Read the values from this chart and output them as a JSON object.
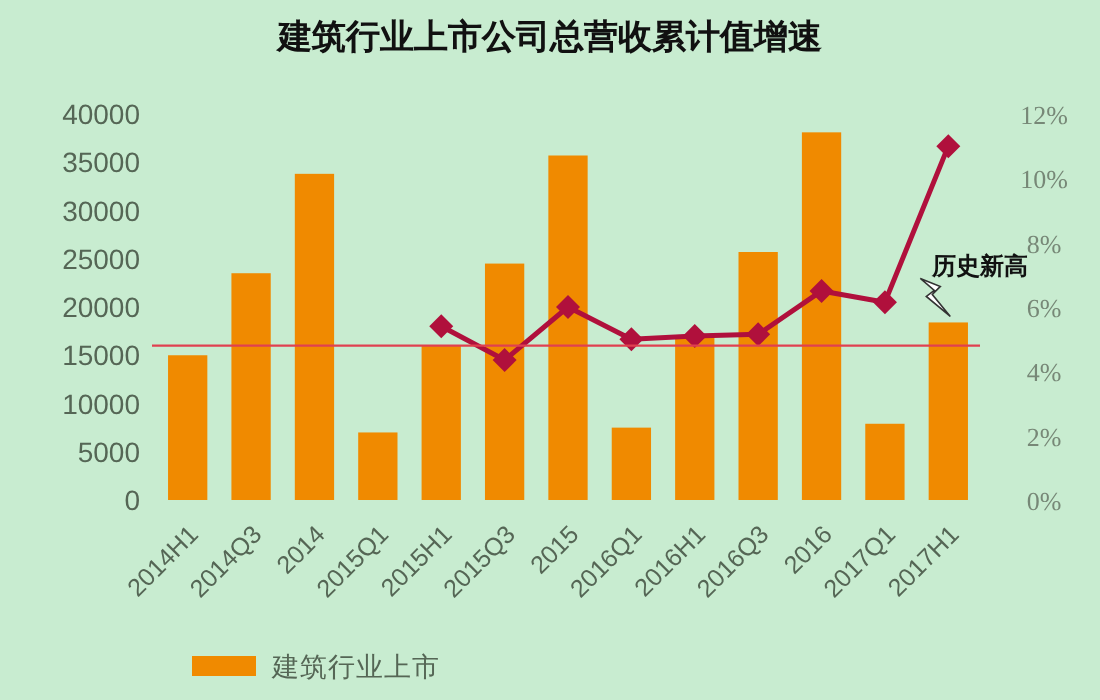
{
  "chart_data": {
    "type": "bar",
    "title": "建筑行业上市公司总营收累计值增速",
    "categories": [
      "2014H1",
      "2014Q3",
      "2014",
      "2015Q1",
      "2015H1",
      "2015Q3",
      "2015",
      "2016Q1",
      "2016H1",
      "2016Q3",
      "2016",
      "2017Q1",
      "2017H1"
    ],
    "series": [
      {
        "name": "建筑行业上市",
        "color": "#f08a00",
        "values": [
          15000,
          23500,
          33800,
          7000,
          16000,
          24500,
          35700,
          7500,
          17000,
          25700,
          38100,
          7900,
          18400
        ]
      },
      {
        "type": "line",
        "axis": "y2",
        "color": "#b0103c",
        "marker": "diamond",
        "values": [
          null,
          null,
          null,
          null,
          5.4,
          4.35,
          6.0,
          5.0,
          5.1,
          5.15,
          6.5,
          6.15,
          11.0
        ]
      }
    ],
    "ylim": [
      0,
      40000
    ],
    "yticks": [
      0,
      5000,
      10000,
      15000,
      20000,
      25000,
      30000,
      35000,
      40000
    ],
    "y2lim": [
      0,
      12
    ],
    "y2ticks": [
      {
        "value": 0,
        "label": "0%"
      },
      {
        "value": 2,
        "label": "2%"
      },
      {
        "value": 4,
        "label": "4%"
      },
      {
        "value": 6,
        "label": "6%"
      },
      {
        "value": 8,
        "label": "8%"
      },
      {
        "value": 10,
        "label": "10%"
      },
      {
        "value": 12,
        "label": "12%"
      }
    ],
    "ref_lines": [
      {
        "axis": "y",
        "value": 16000,
        "color": "#e04050"
      }
    ],
    "annotations": [
      {
        "text": "历史新高",
        "x": "2017H1",
        "y": 18400
      }
    ],
    "legend": "bottom",
    "grid": false
  }
}
